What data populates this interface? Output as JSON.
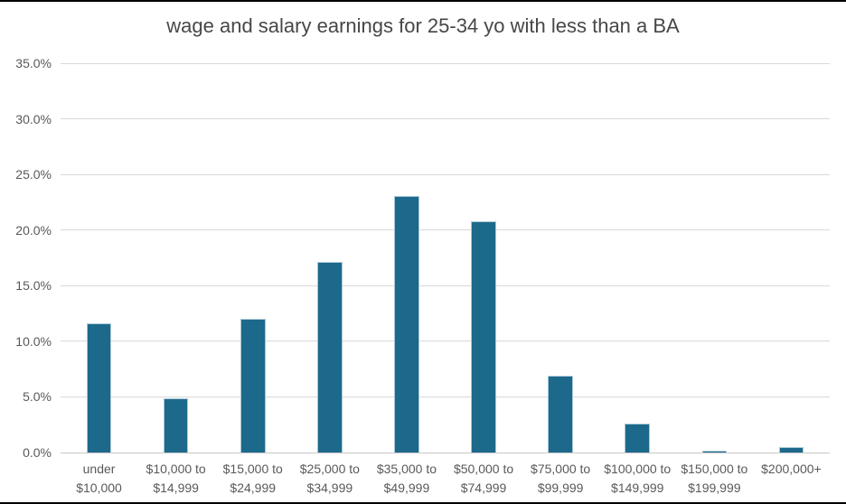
{
  "chart_data": {
    "type": "bar",
    "title": "wage and salary earnings for 25-34 yo with less than a BA",
    "xlabel": "",
    "ylabel": "",
    "categories": [
      "under $10,000",
      "$10,000 to $14,999",
      "$15,000 to $24,999",
      "$25,000 to $34,999",
      "$35,000 to $49,999",
      "$50,000 to $74,999",
      "$75,000 to $99,999",
      "$100,000 to $149,999",
      "$150,000 to $199,999",
      "$200,000+"
    ],
    "category_lines": [
      [
        "under",
        "$10,000"
      ],
      [
        "$10,000 to",
        "$14,999"
      ],
      [
        "$15,000 to",
        "$24,999"
      ],
      [
        "$25,000 to",
        "$34,999"
      ],
      [
        "$35,000 to",
        "$49,999"
      ],
      [
        "$50,000 to",
        "$74,999"
      ],
      [
        "$75,000 to",
        "$99,999"
      ],
      [
        "$100,000 to",
        "$149,999"
      ],
      [
        "$150,000 to",
        "$199,999"
      ],
      [
        "$200,000+"
      ]
    ],
    "values": [
      11.6,
      4.9,
      12.0,
      17.1,
      23.1,
      20.8,
      6.9,
      2.6,
      0.2,
      0.5
    ],
    "ylim": [
      0,
      35
    ],
    "ytick_step": 5,
    "ytick_labels": [
      "0.0%",
      "5.0%",
      "10.0%",
      "15.0%",
      "20.0%",
      "25.0%",
      "30.0%",
      "35.0%"
    ],
    "grid": true,
    "legend": "none",
    "colors": {
      "bar_fill": "#1C698B",
      "bar_border": "#A9C8D7",
      "gridline": "#D9D9D9",
      "axis_line": "#C8C8C8",
      "tick_text": "#595959",
      "title_text": "#474747",
      "frame_border": "#000000"
    }
  }
}
